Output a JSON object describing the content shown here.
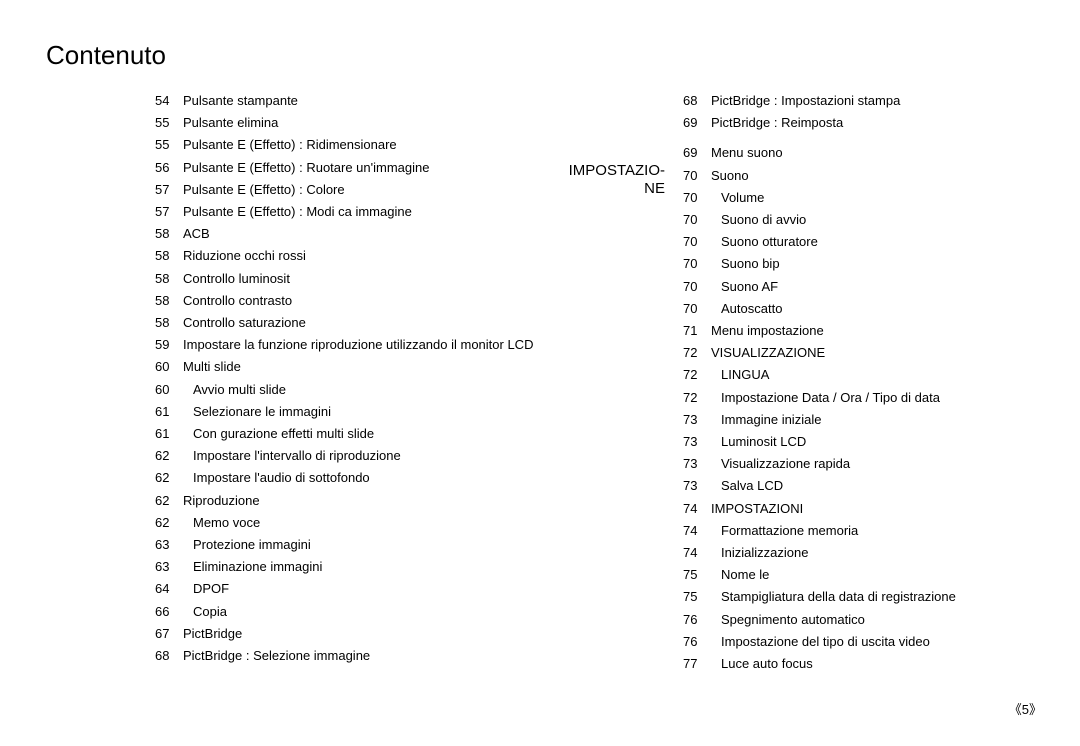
{
  "title": "Contenuto",
  "page_number": "《5》",
  "section_label": {
    "line1": "IMPOSTAZIO-",
    "line2": "NE"
  },
  "col1": [
    {
      "num": "54",
      "text": "Pulsante stampante",
      "indent": false
    },
    {
      "num": "55",
      "text": "Pulsante elimina",
      "indent": false
    },
    {
      "num": "55",
      "text": "Pulsante E (Effetto) : Ridimensionare",
      "indent": false
    },
    {
      "num": "56",
      "text": "Pulsante E (Effetto) : Ruotare un'immagine",
      "indent": false
    },
    {
      "num": "57",
      "text": "Pulsante E (Effetto) : Colore",
      "indent": false
    },
    {
      "num": "57",
      "text": "Pulsante E (Effetto) : Modi ca immagine",
      "indent": false
    },
    {
      "num": "58",
      "text": "ACB",
      "indent": false
    },
    {
      "num": "58",
      "text": "Riduzione occhi rossi",
      "indent": false
    },
    {
      "num": "58",
      "text": "Controllo luminosit",
      "indent": false
    },
    {
      "num": "58",
      "text": "Controllo contrasto",
      "indent": false
    },
    {
      "num": "58",
      "text": "Controllo saturazione",
      "indent": false
    },
    {
      "num": "59",
      "text": "Impostare la funzione riproduzione utilizzando il monitor LCD",
      "indent": false
    },
    {
      "num": "60",
      "text": "Multi slide",
      "indent": false
    },
    {
      "num": "60",
      "text": "Avvio multi slide",
      "indent": true
    },
    {
      "num": "61",
      "text": "Selezionare le immagini",
      "indent": true
    },
    {
      "num": "61",
      "text": "Con gurazione effetti multi slide",
      "indent": true
    },
    {
      "num": "62",
      "text": "Impostare l'intervallo di riproduzione",
      "indent": true
    },
    {
      "num": "62",
      "text": "Impostare l'audio di sottofondo",
      "indent": true
    },
    {
      "num": "62",
      "text": "Riproduzione",
      "indent": false
    },
    {
      "num": "62",
      "text": "Memo voce",
      "indent": true
    },
    {
      "num": "63",
      "text": "Protezione immagini",
      "indent": true
    },
    {
      "num": "63",
      "text": "Eliminazione immagini",
      "indent": true
    },
    {
      "num": "64",
      "text": "DPOF",
      "indent": true
    },
    {
      "num": "66",
      "text": "Copia",
      "indent": true
    },
    {
      "num": "67",
      "text": "PictBridge",
      "indent": false
    },
    {
      "num": "68",
      "text": "PictBridge : Selezione immagine",
      "indent": false
    }
  ],
  "col2": [
    {
      "num": "68",
      "text": "PictBridge : Impostazioni stampa",
      "indent": false,
      "bump": false
    },
    {
      "num": "69",
      "text": "PictBridge : Reimposta",
      "indent": false,
      "bump": false
    },
    {
      "num": "69",
      "text": "Menu suono",
      "indent": false,
      "bump": true
    },
    {
      "num": "70",
      "text": "Suono",
      "indent": false,
      "bump": false
    },
    {
      "num": "70",
      "text": "Volume",
      "indent": true,
      "bump": false
    },
    {
      "num": "70",
      "text": "Suono di avvio",
      "indent": true,
      "bump": false
    },
    {
      "num": "70",
      "text": "Suono otturatore",
      "indent": true,
      "bump": false
    },
    {
      "num": "70",
      "text": "Suono bip",
      "indent": true,
      "bump": false
    },
    {
      "num": "70",
      "text": "Suono AF",
      "indent": true,
      "bump": false
    },
    {
      "num": "70",
      "text": "Autoscatto",
      "indent": true,
      "bump": false
    },
    {
      "num": "71",
      "text": "Menu impostazione",
      "indent": false,
      "bump": false
    },
    {
      "num": "72",
      "text": "VISUALIZZAZIONE",
      "indent": false,
      "bump": false
    },
    {
      "num": "72",
      "text": "LINGUA",
      "indent": true,
      "bump": false
    },
    {
      "num": "72",
      "text": "Impostazione Data / Ora / Tipo di data",
      "indent": true,
      "bump": false
    },
    {
      "num": "73",
      "text": "Immagine iniziale",
      "indent": true,
      "bump": false
    },
    {
      "num": "73",
      "text": "Luminosit LCD",
      "indent": true,
      "bump": false
    },
    {
      "num": "73",
      "text": "Visualizzazione rapida",
      "indent": true,
      "bump": false
    },
    {
      "num": "73",
      "text": "Salva LCD",
      "indent": true,
      "bump": false
    },
    {
      "num": "74",
      "text": "IMPOSTAZIONI",
      "indent": false,
      "bump": false
    },
    {
      "num": "74",
      "text": "Formattazione memoria",
      "indent": true,
      "bump": false
    },
    {
      "num": "74",
      "text": "Inizializzazione",
      "indent": true,
      "bump": false
    },
    {
      "num": "75",
      "text": "Nome  le",
      "indent": true,
      "bump": false
    },
    {
      "num": "75",
      "text": "Stampigliatura della data di registrazione",
      "indent": true,
      "bump": false
    },
    {
      "num": "76",
      "text": "Spegnimento automatico",
      "indent": true,
      "bump": false
    },
    {
      "num": "76",
      "text": "Impostazione del tipo di uscita video",
      "indent": true,
      "bump": false
    },
    {
      "num": "77",
      "text": "Luce auto focus",
      "indent": true,
      "bump": false
    }
  ]
}
